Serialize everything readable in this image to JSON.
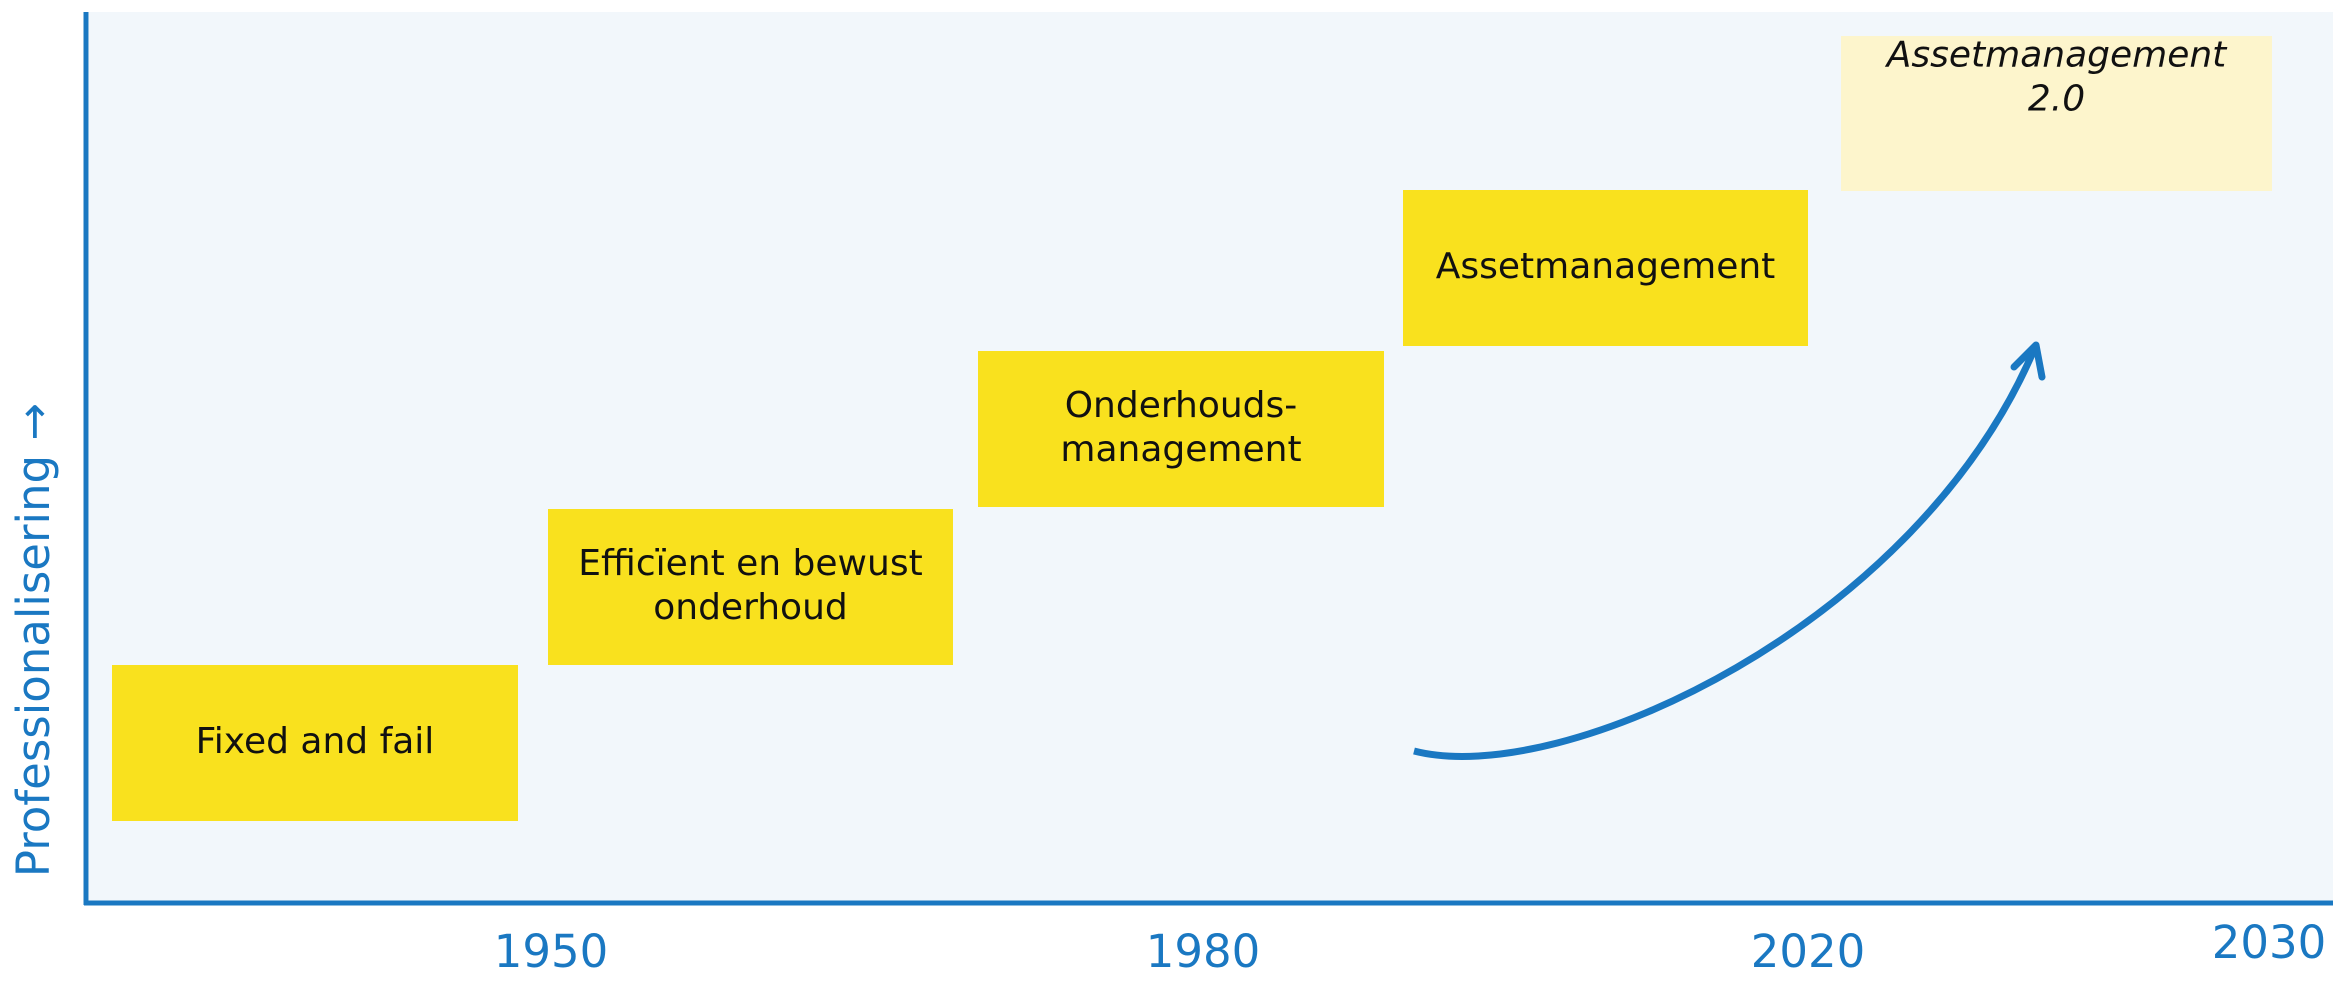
{
  "axis": {
    "y_label": "Professionalisering →",
    "x_labels": [
      "1950",
      "1980",
      "2020",
      "2030"
    ]
  },
  "stages": [
    {
      "lines": [
        "Fixed and fail"
      ]
    },
    {
      "lines": [
        "Efficïent en bewust",
        "onderhoud"
      ]
    },
    {
      "lines": [
        "Onderhouds-",
        "management"
      ]
    },
    {
      "lines": [
        "Assetmanagement"
      ]
    },
    {
      "lines": [
        "Assetmanagement",
        "2.0"
      ]
    }
  ]
}
